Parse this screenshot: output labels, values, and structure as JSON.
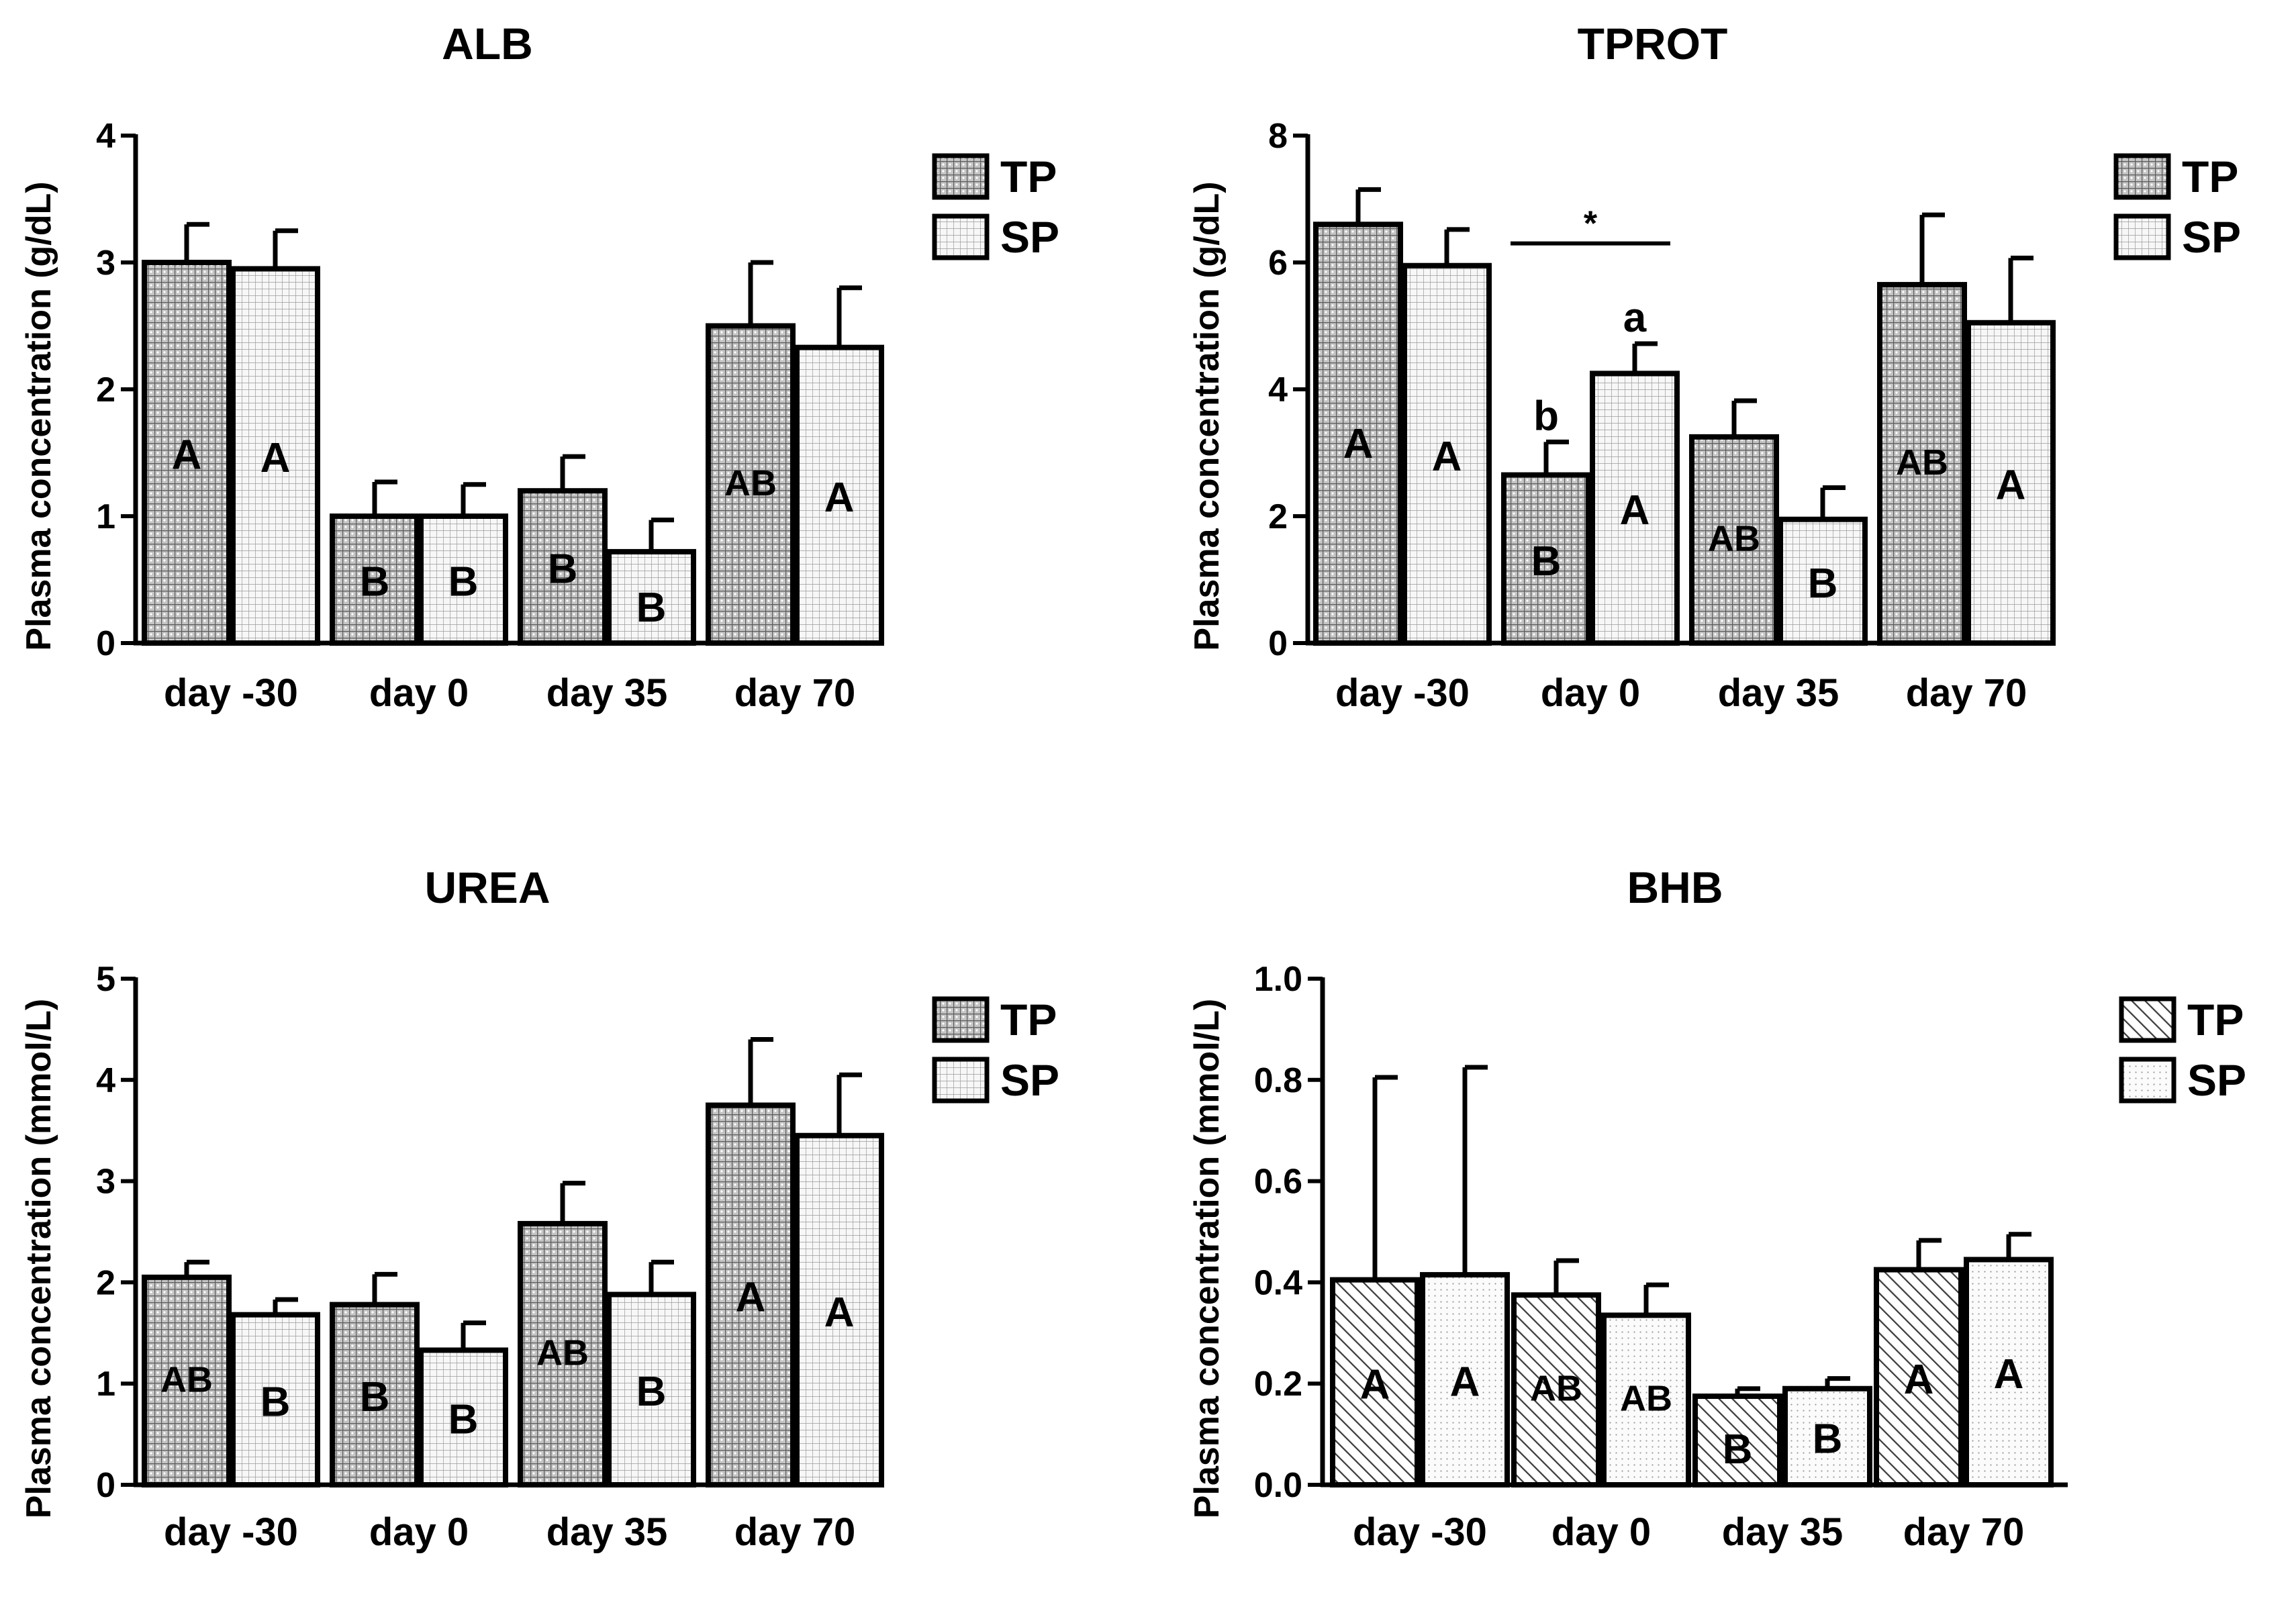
{
  "legend": {
    "tp": "TP",
    "sp": "SP"
  },
  "colors": {
    "axis": "#000000",
    "bar_stroke": "#000000",
    "tp_fill": "#bdbdbd",
    "sp_fill": "#f4f4f4",
    "text": "#000000"
  },
  "chart_data": [
    {
      "id": "alb",
      "type": "bar",
      "title": "ALB",
      "ylabel": "Plasma concentration (g/dL)",
      "xlabel": "",
      "ylim": [
        0,
        4
      ],
      "yticks": [
        "0",
        "1",
        "2",
        "3",
        "4"
      ],
      "tick_values": [
        0,
        1,
        2,
        3,
        4
      ],
      "categories": [
        "day -30",
        "day 0",
        "day 35",
        "day 70"
      ],
      "pattern": "grid",
      "series": [
        {
          "name": "TP",
          "values": [
            3.0,
            1.0,
            1.2,
            2.5
          ],
          "errors": [
            0.3,
            0.27,
            0.27,
            0.5
          ],
          "letters": [
            "A",
            "B",
            "B",
            "AB"
          ]
        },
        {
          "name": "SP",
          "values": [
            2.95,
            1.0,
            0.72,
            2.33
          ],
          "errors": [
            0.3,
            0.25,
            0.25,
            0.47
          ],
          "letters": [
            "A",
            "B",
            "B",
            "A"
          ]
        }
      ],
      "annotations": []
    },
    {
      "id": "tprot",
      "type": "bar",
      "title": "TPROT",
      "ylabel": "Plasma concentration (g/dL)",
      "xlabel": "",
      "ylim": [
        0,
        8
      ],
      "yticks": [
        "0",
        "2",
        "4",
        "6",
        "8"
      ],
      "tick_values": [
        0,
        2,
        4,
        6,
        8
      ],
      "categories": [
        "day -30",
        "day 0",
        "day 35",
        "day 70"
      ],
      "pattern": "grid",
      "series": [
        {
          "name": "TP",
          "values": [
            6.6,
            2.65,
            3.25,
            5.65
          ],
          "errors": [
            0.55,
            0.52,
            0.57,
            1.1
          ],
          "letters": [
            "A",
            "B",
            "AB",
            "AB"
          ]
        },
        {
          "name": "SP",
          "values": [
            5.95,
            4.25,
            1.95,
            5.05
          ],
          "errors": [
            0.57,
            0.47,
            0.5,
            1.02
          ],
          "letters": [
            "A",
            "A",
            "B",
            "A"
          ]
        }
      ],
      "annotations": [
        {
          "type": "bracket",
          "category_index": 1,
          "y": 6.3,
          "label": "*"
        },
        {
          "type": "sig",
          "category_index": 1,
          "series_index": 0,
          "label": "b"
        },
        {
          "type": "sig",
          "category_index": 1,
          "series_index": 1,
          "label": "a"
        }
      ]
    },
    {
      "id": "urea",
      "type": "bar",
      "title": "UREA",
      "ylabel": "Plasma concentration (mmol/L)",
      "xlabel": "",
      "ylim": [
        0,
        5
      ],
      "yticks": [
        "0",
        "1",
        "2",
        "3",
        "4",
        "5"
      ],
      "tick_values": [
        0,
        1,
        2,
        3,
        4,
        5
      ],
      "categories": [
        "day -30",
        "day 0",
        "day 35",
        "day 70"
      ],
      "pattern": "grid",
      "series": [
        {
          "name": "TP",
          "values": [
            2.05,
            1.78,
            2.58,
            3.75
          ],
          "errors": [
            0.15,
            0.3,
            0.4,
            0.65
          ],
          "letters": [
            "AB",
            "B",
            "AB",
            "A"
          ]
        },
        {
          "name": "SP",
          "values": [
            1.68,
            1.33,
            1.88,
            3.45
          ],
          "errors": [
            0.15,
            0.27,
            0.32,
            0.6
          ],
          "letters": [
            "B",
            "B",
            "B",
            "A"
          ]
        }
      ],
      "annotations": []
    },
    {
      "id": "bhb",
      "type": "bar",
      "title": "BHB",
      "ylabel": "Plasma concentration (mmol/L)",
      "xlabel": "",
      "ylim": [
        0,
        1.0
      ],
      "yticks": [
        "0.0",
        "0.2",
        "0.4",
        "0.6",
        "0.8",
        "1.0"
      ],
      "tick_values": [
        0,
        0.2,
        0.4,
        0.6,
        0.8,
        1.0
      ],
      "categories": [
        "day -30",
        "day 0",
        "day 35",
        "day 70"
      ],
      "pattern": "hatch",
      "series": [
        {
          "name": "TP",
          "values": [
            0.405,
            0.375,
            0.175,
            0.425
          ],
          "errors": [
            0.4,
            0.068,
            0.015,
            0.058
          ],
          "letters": [
            "A",
            "AB",
            "B",
            "A"
          ]
        },
        {
          "name": "SP",
          "values": [
            0.415,
            0.335,
            0.19,
            0.445
          ],
          "errors": [
            0.41,
            0.06,
            0.02,
            0.05
          ],
          "letters": [
            "A",
            "AB",
            "B",
            "A"
          ]
        }
      ],
      "annotations": []
    }
  ]
}
